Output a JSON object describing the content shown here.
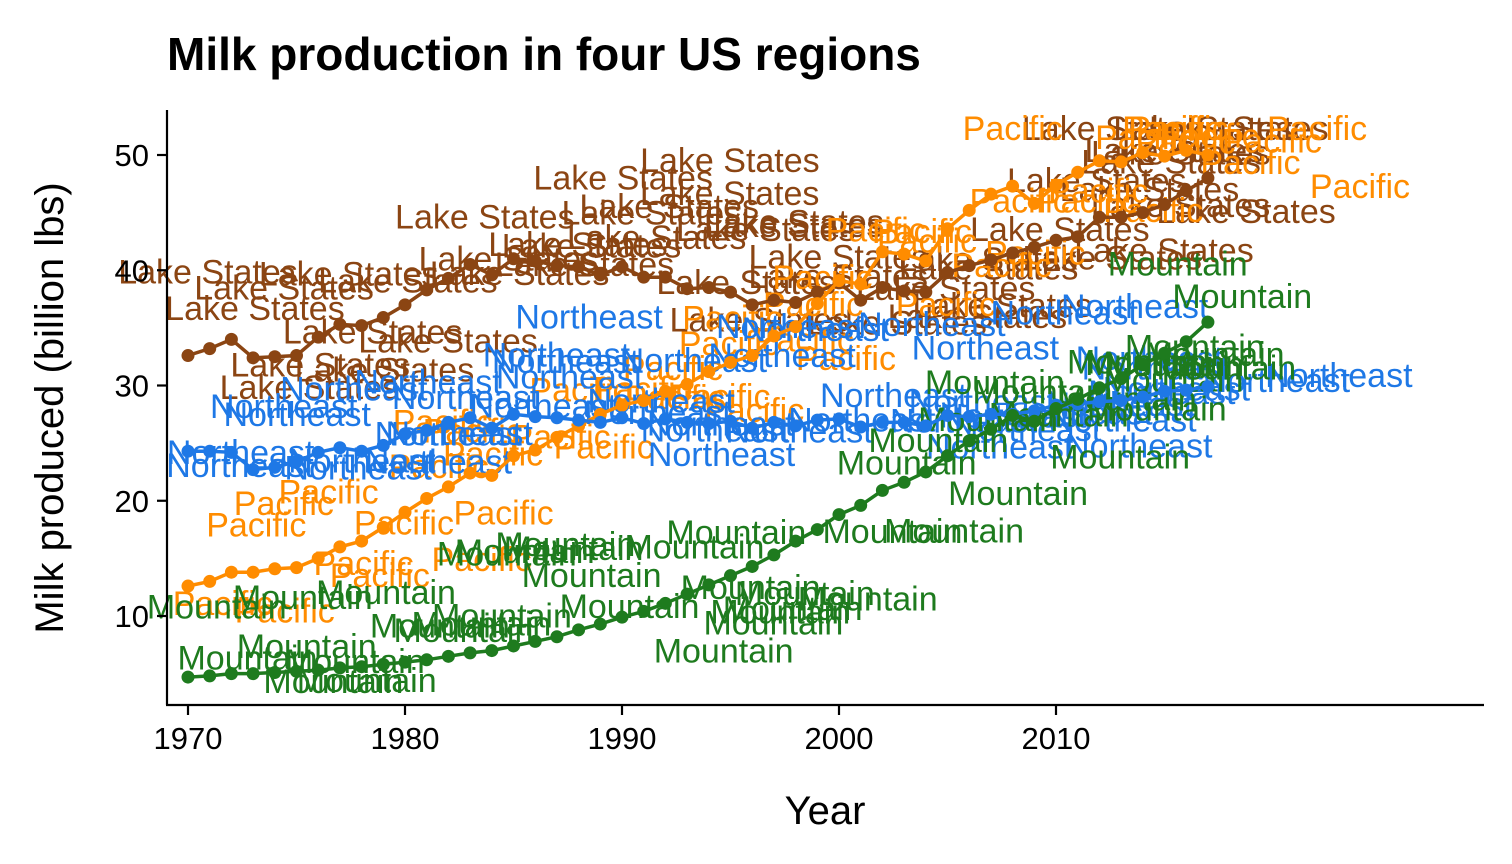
{
  "chart_data": {
    "type": "line",
    "title": "Milk production in four US regions",
    "xlabel": "Year",
    "ylabel": "Milk produced (billion lbs)",
    "xlim": [
      1970,
      2030
    ],
    "ylim": [
      2.5,
      54
    ],
    "x_ticks": [
      1970,
      1980,
      1990,
      2000,
      2010
    ],
    "y_ticks": [
      10,
      20,
      30,
      40,
      50
    ],
    "grid": false,
    "legend": "none",
    "x": [
      1970,
      1971,
      1972,
      1973,
      1974,
      1975,
      1976,
      1977,
      1978,
      1979,
      1980,
      1981,
      1982,
      1983,
      1984,
      1985,
      1986,
      1987,
      1988,
      1989,
      1990,
      1991,
      1992,
      1993,
      1994,
      1995,
      1996,
      1997,
      1998,
      1999,
      2000,
      2001,
      2002,
      2003,
      2004,
      2005,
      2006,
      2007,
      2008,
      2009,
      2010,
      2011,
      2012,
      2013,
      2014,
      2015,
      2016,
      2017
    ],
    "series": [
      {
        "name": "Lake States",
        "color": "#8B4513",
        "values": [
          32.6,
          33.2,
          34.0,
          32.4,
          32.5,
          32.6,
          34.2,
          35.3,
          35.2,
          35.9,
          37.0,
          38.3,
          39.3,
          40.5,
          39.6,
          41.0,
          40.8,
          40.4,
          40.3,
          39.6,
          40.3,
          39.4,
          39.4,
          38.4,
          38.5,
          38.1,
          37.0,
          37.4,
          37.2,
          38.1,
          38.9,
          37.4,
          38.5,
          38.2,
          38.1,
          39.8,
          40.4,
          40.9,
          41.5,
          42.0,
          42.6,
          42.9,
          44.6,
          44.6,
          45.0,
          45.7,
          46.9,
          48.0
        ]
      },
      {
        "name": "Pacific",
        "color": "#FF8C00",
        "values": [
          12.6,
          13.0,
          13.8,
          13.8,
          14.1,
          14.2,
          15.0,
          16.0,
          16.5,
          17.7,
          19.0,
          20.2,
          21.2,
          22.4,
          22.2,
          23.9,
          24.4,
          25.5,
          26.5,
          27.5,
          28.3,
          28.7,
          29.5,
          30.1,
          31.2,
          32.0,
          32.6,
          34.3,
          35.1,
          37.1,
          39.1,
          38.8,
          41.6,
          41.4,
          40.8,
          43.6,
          45.2,
          46.6,
          47.3,
          45.8,
          47.4,
          48.5,
          49.5,
          49.4,
          50.2,
          49.9,
          50.4,
          50.0
        ]
      },
      {
        "name": "Northeast",
        "color": "#1E78E6",
        "values": [
          24.3,
          24.3,
          24.2,
          22.7,
          22.9,
          23.4,
          24.2,
          24.6,
          24.3,
          24.8,
          25.8,
          26.1,
          26.8,
          27.2,
          26.3,
          27.5,
          27.3,
          27.2,
          27.0,
          26.8,
          27.2,
          26.7,
          27.1,
          26.8,
          26.7,
          26.9,
          26.3,
          26.8,
          26.5,
          27.0,
          27.1,
          26.4,
          26.8,
          26.8,
          26.5,
          27.4,
          27.3,
          27.5,
          27.5,
          27.8,
          28.3,
          28.4,
          28.6,
          28.7,
          29.0,
          29.5,
          29.6,
          29.9
        ]
      },
      {
        "name": "Mountain",
        "color": "#1E7B1E",
        "values": [
          4.7,
          4.8,
          5.0,
          5.0,
          5.1,
          5.2,
          5.3,
          5.5,
          5.6,
          5.8,
          6.0,
          6.2,
          6.5,
          6.8,
          7.0,
          7.4,
          7.8,
          8.2,
          8.8,
          9.3,
          9.9,
          10.4,
          11.1,
          11.9,
          12.7,
          13.5,
          14.3,
          15.3,
          16.5,
          17.5,
          18.8,
          19.6,
          20.9,
          21.6,
          22.5,
          23.9,
          25.2,
          26.2,
          27.4,
          26.9,
          28.0,
          28.8,
          29.8,
          30.6,
          31.8,
          32.8,
          33.8,
          35.5
        ]
      }
    ]
  }
}
